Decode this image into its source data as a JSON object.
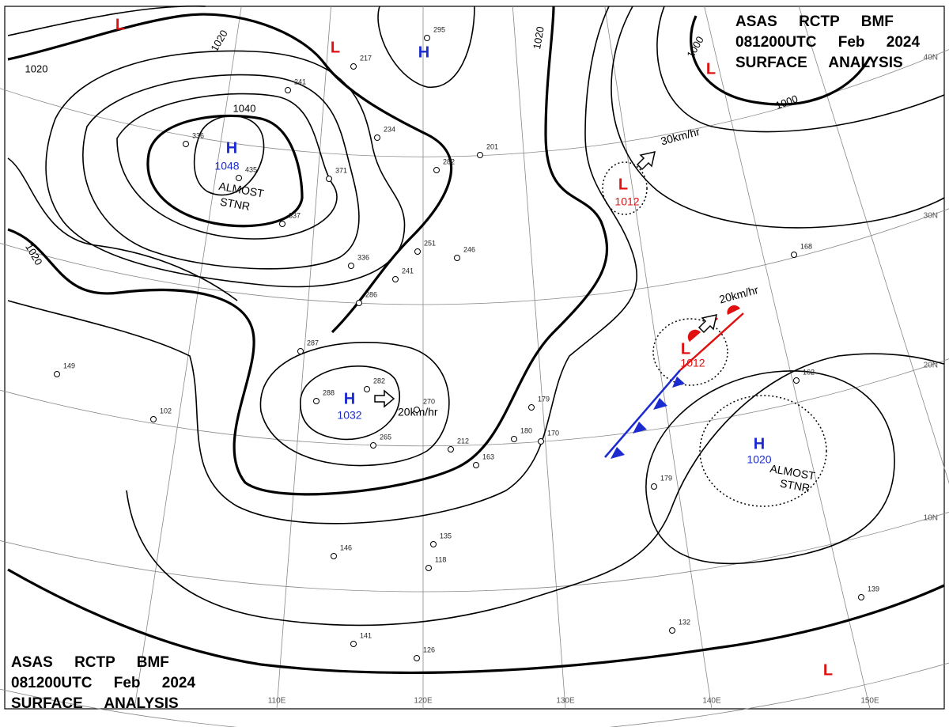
{
  "header_top": {
    "lines": [
      "ASAS RCTP BMF",
      "081200UTC Feb 2024",
      "SURFACE ANALYSIS"
    ]
  },
  "header_bottom": {
    "lines": [
      "ASAS RCTP BMF",
      "081200UTC Feb 2024",
      "SURFACE ANALYSIS"
    ]
  },
  "pressure_centers": [
    {
      "type": "H",
      "value": "1048",
      "note": [
        "ALMOST",
        "STNR"
      ]
    },
    {
      "type": "H",
      "value": "1032"
    },
    {
      "type": "H",
      "value": "1020",
      "note": [
        "ALMOST",
        "STNR"
      ]
    },
    {
      "type": "H"
    },
    {
      "type": "L",
      "value": "1012"
    },
    {
      "type": "L",
      "value": "1012"
    },
    {
      "type": "L"
    },
    {
      "type": "L"
    },
    {
      "type": "L"
    },
    {
      "type": "L"
    }
  ],
  "isobar_labels": [
    "1020",
    "1020",
    "1040",
    "1020",
    "1020",
    "1000",
    "1000"
  ],
  "motion_labels": [
    "30km/hr",
    "20km/hr",
    "20km/hr"
  ],
  "latitude_labels": [
    "40N",
    "30N",
    "20N",
    "10N"
  ],
  "longitude_labels": [
    "110E",
    "120E",
    "130E",
    "140E",
    "150E"
  ],
  "stations": [
    "295",
    "217",
    "241",
    "336",
    "435",
    "371",
    "234",
    "282",
    "201",
    "337",
    "336",
    "251",
    "246",
    "241",
    "286",
    "287",
    "288",
    "282",
    "265",
    "270",
    "212",
    "163",
    "179",
    "180",
    "170",
    "179",
    "146",
    "118",
    "135",
    "126",
    "141",
    "149",
    "102",
    "132",
    "139",
    "162",
    "168"
  ]
}
